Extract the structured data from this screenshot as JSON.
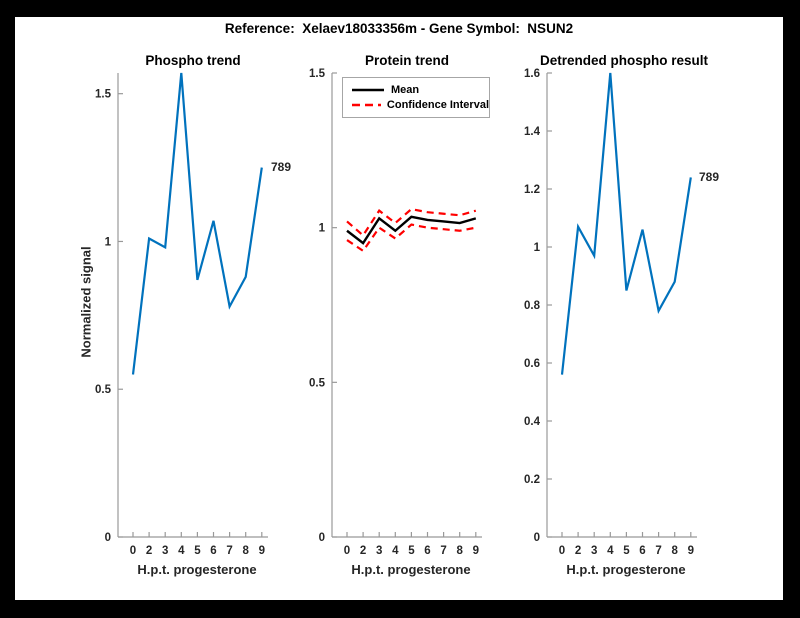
{
  "figure": {
    "title": "Reference:  Xelaev18033356m - Gene Symbol:  NSUN2"
  },
  "colors": {
    "line_blue": "#0072BD",
    "ci_red": "#FF0000",
    "mean_black": "#000000",
    "axis_gray": "#999999",
    "tick_text": "#262626",
    "figure_bg": "#FFFFFF",
    "frame_bg": "#000000"
  },
  "chart_data": [
    {
      "type": "line",
      "title": "Phospho trend",
      "xlabel": "H.p.t. progesterone",
      "ylabel": "Normalized signal",
      "x_tick_labels": [
        "0",
        "2",
        "3",
        "4",
        "5",
        "6",
        "7",
        "8",
        "9"
      ],
      "ylim": [
        0,
        1.57
      ],
      "yticks": [
        0,
        0.5,
        1,
        1.5
      ],
      "ytick_labels": [
        "0",
        "0.5",
        "1",
        "1.5"
      ],
      "grid": false,
      "series": [
        {
          "name": "Phospho signal",
          "color": "#0072BD",
          "width": 2.2,
          "dash": null,
          "values": [
            0.55,
            1.01,
            0.98,
            1.57,
            0.87,
            1.07,
            0.78,
            0.88,
            1.25
          ]
        }
      ],
      "annotation": {
        "text": "789",
        "at_index": 8
      }
    },
    {
      "type": "line",
      "title": "Protein trend",
      "xlabel": "H.p.t. progesterone",
      "ylabel": "",
      "x_tick_labels": [
        "0",
        "2",
        "3",
        "4",
        "5",
        "6",
        "7",
        "8",
        "9"
      ],
      "ylim": [
        0,
        1.5
      ],
      "yticks": [
        0,
        0.5,
        1,
        1.5
      ],
      "ytick_labels": [
        "0",
        "0.5",
        "1",
        "1.5"
      ],
      "grid": false,
      "legend": {
        "position": "top-left",
        "entries": [
          {
            "label": "Mean",
            "color": "#000000",
            "style": "solid"
          },
          {
            "label": "Confidence Interval",
            "color": "#FF0000",
            "style": "dashed"
          }
        ]
      },
      "series": [
        {
          "name": "CI upper",
          "color": "#FF0000",
          "width": 2.2,
          "dash": "7,5",
          "values": [
            1.02,
            0.975,
            1.055,
            1.015,
            1.06,
            1.05,
            1.045,
            1.04,
            1.055
          ]
        },
        {
          "name": "CI lower",
          "color": "#FF0000",
          "width": 2.2,
          "dash": "7,5",
          "values": [
            0.96,
            0.925,
            1.0,
            0.965,
            1.01,
            1.0,
            0.995,
            0.99,
            1.0
          ]
        },
        {
          "name": "Mean",
          "color": "#000000",
          "width": 2.4,
          "dash": null,
          "values": [
            0.99,
            0.95,
            1.03,
            0.99,
            1.035,
            1.025,
            1.02,
            1.015,
            1.03
          ]
        }
      ]
    },
    {
      "type": "line",
      "title": "Detrended phospho result",
      "xlabel": "H.p.t. progesterone",
      "ylabel": "",
      "x_tick_labels": [
        "0",
        "2",
        "3",
        "4",
        "5",
        "6",
        "7",
        "8",
        "9"
      ],
      "ylim": [
        0,
        1.6
      ],
      "yticks": [
        0,
        0.2,
        0.4,
        0.6,
        0.8,
        1,
        1.2,
        1.4,
        1.6
      ],
      "ytick_labels": [
        "0",
        "0.2",
        "0.4",
        "0.6",
        "0.8",
        "1",
        "1.2",
        "1.4",
        "1.6"
      ],
      "grid": false,
      "series": [
        {
          "name": "Detrended phospho",
          "color": "#0072BD",
          "width": 2.2,
          "dash": null,
          "values": [
            0.56,
            1.07,
            0.97,
            1.6,
            0.85,
            1.06,
            0.78,
            0.88,
            1.24
          ]
        }
      ],
      "annotation": {
        "text": "789",
        "at_index": 8
      }
    }
  ]
}
